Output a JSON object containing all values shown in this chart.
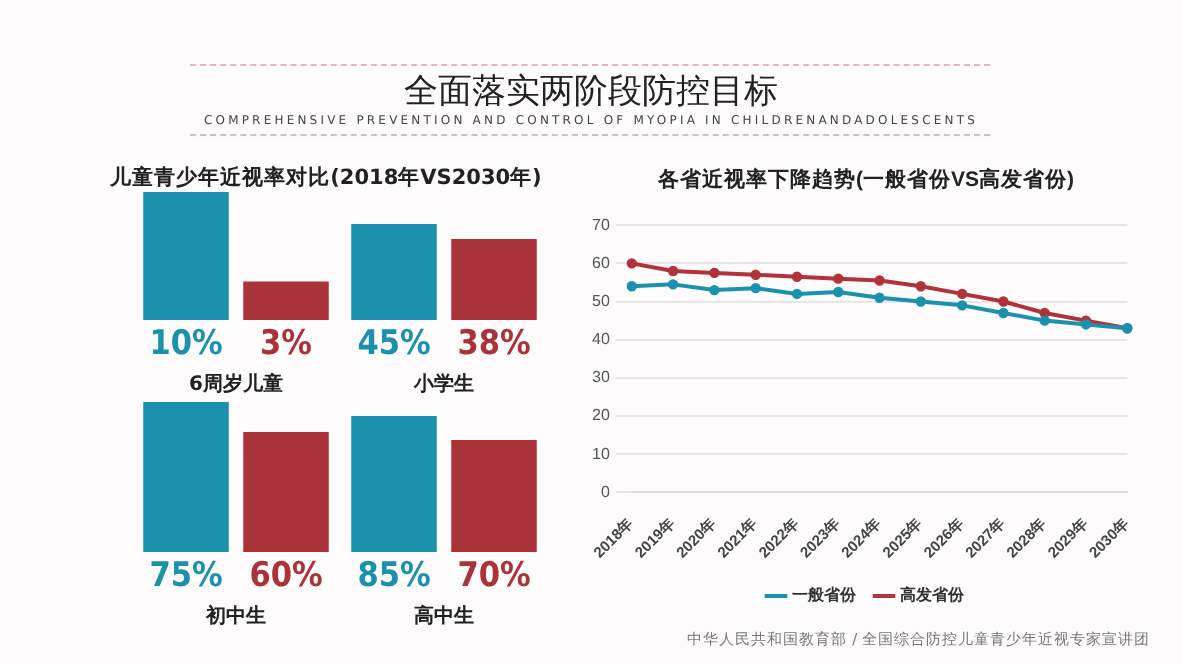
{
  "chart_data": [
    {
      "type": "other",
      "title": "全面落实两阶段防控目标",
      "subtitle": "COMPREHENSIVE PREVENTION AND CONTROL OF MYOPIA IN CHILDRENANDADOLESCENTS",
      "annotations": [
        "中华人民共和国教育部 / 全国综合防控儿童青少年近视专家宣讲团"
      ]
    },
    {
      "type": "bar",
      "title": "儿童青少年近视率对比(2018年VS2030年)",
      "xlabel": "6周岁儿童",
      "categories": [
        null,
        null
      ],
      "values": [
        10,
        3
      ],
      "colors": [
        "#1a91ad",
        "#a93338"
      ],
      "value_labels": [
        "10%",
        "3%"
      ]
    },
    {
      "type": "bar",
      "xlabel": "小学生",
      "categories": [
        null,
        null
      ],
      "values": [
        45,
        38
      ],
      "colors": [
        "#1a91ad",
        "#a93338"
      ],
      "value_labels": [
        "45%",
        "38%"
      ]
    },
    {
      "type": "bar",
      "xlabel": "初中生",
      "categories": [
        null,
        null
      ],
      "values": [
        75,
        60
      ],
      "colors": [
        "#1a91ad",
        "#a93338"
      ],
      "value_labels": [
        "75%",
        "60%"
      ]
    },
    {
      "type": "bar",
      "xlabel": "高中生",
      "categories": [
        null,
        null
      ],
      "values": [
        85,
        70
      ],
      "colors": [
        "#1a91ad",
        "#a93338"
      ],
      "value_labels": [
        "85%",
        "70%"
      ]
    },
    {
      "type": "line",
      "title": "各省近视率下降趋势(一般省份VS高发省份)",
      "categories": [
        "2018年",
        "2019年",
        "2020年",
        "2021年",
        "2022年",
        "2023年",
        "2024年",
        "2025年",
        "2026年",
        "2027年",
        "2028年",
        "2029年",
        "2030年"
      ],
      "ylim": [
        0,
        70
      ],
      "yticks": [
        0,
        10,
        20,
        30,
        40,
        50,
        60,
        70
      ],
      "grid": "y",
      "legend": "bottom",
      "marker": "circle",
      "series": [
        {
          "name": "一般省份",
          "color": "#1a91ad",
          "values": [
            54,
            54.5,
            53,
            53.5,
            52,
            52.5,
            51,
            50,
            49,
            47,
            45,
            44,
            43
          ]
        },
        {
          "name": "高发省份",
          "color": "#b0333a",
          "values": [
            60,
            58,
            57.5,
            57,
            56.5,
            56,
            55.5,
            54,
            52,
            50,
            47,
            45,
            43
          ]
        }
      ]
    }
  ]
}
